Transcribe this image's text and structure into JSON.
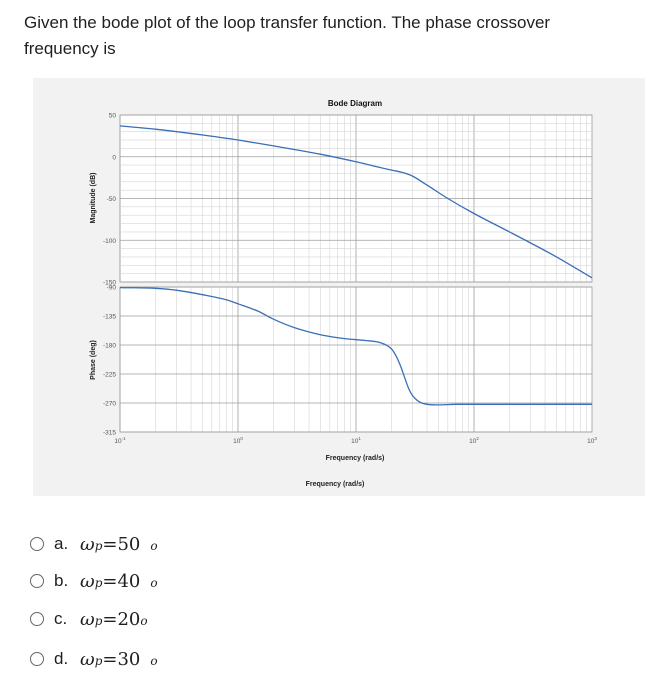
{
  "question": {
    "text": "Given the bode plot of the loop transfer function. The phase crossover frequency is"
  },
  "chart_data": {
    "type": "line",
    "title": "Bode Diagram",
    "xlabel": "Frequency (rad/s)",
    "footer_label": "Frequency (rad/s)",
    "x_scale": "log",
    "xlim": [
      0.1,
      1000
    ],
    "x_ticks": [
      {
        "base": "10",
        "exp": "-1"
      },
      {
        "base": "10",
        "exp": "0"
      },
      {
        "base": "10",
        "exp": "1"
      },
      {
        "base": "10",
        "exp": "2"
      },
      {
        "base": "10",
        "exp": "3"
      }
    ],
    "magnitude": {
      "ylabel": "Magnitude (dB)",
      "ylim": [
        -150,
        50
      ],
      "y_ticks": [
        "50",
        "0",
        "-50",
        "-100",
        "-150"
      ],
      "color": "#3b6fb5",
      "x": [
        0.1,
        0.2,
        0.5,
        1,
        2,
        5,
        10,
        15,
        20,
        25,
        30,
        40,
        60,
        100,
        200,
        500,
        1000
      ],
      "y": [
        37,
        33,
        26,
        20,
        13,
        3,
        -6,
        -12,
        -16,
        -19,
        -23,
        -34,
        -50,
        -68,
        -90,
        -120,
        -145
      ]
    },
    "phase": {
      "ylabel": "Phase (deg)",
      "ylim": [
        -315,
        -90
      ],
      "y_ticks": [
        "-90",
        "-135",
        "-180",
        "-225",
        "-270",
        "-315"
      ],
      "color": "#3b6fb5",
      "x": [
        0.1,
        0.2,
        0.3,
        0.5,
        0.8,
        1,
        1.5,
        2,
        3,
        5,
        8,
        12,
        15,
        18,
        20,
        22,
        24,
        26,
        28,
        30,
        33,
        36,
        40,
        50,
        70,
        100,
        200,
        1000
      ],
      "y": [
        -91,
        -92,
        -95,
        -102,
        -110,
        -116,
        -128,
        -140,
        -153,
        -164,
        -170,
        -173,
        -175,
        -180,
        -186,
        -198,
        -214,
        -232,
        -248,
        -258,
        -266,
        -270,
        -272,
        -273,
        -272,
        -272,
        -272,
        -272
      ]
    }
  },
  "options": [
    {
      "letter": "a.",
      "omega": "ω",
      "sub": "p",
      "value": "=50",
      "degree": "o"
    },
    {
      "letter": "b.",
      "omega": "ω",
      "sub": "p",
      "value": "=40",
      "degree": "o"
    },
    {
      "letter": "c.",
      "omega": "ω",
      "sub": "p",
      "value": "=20",
      "degree": "o"
    },
    {
      "letter": "d.",
      "omega": "ω",
      "sub": "p",
      "value": "=30",
      "degree": "o"
    }
  ]
}
